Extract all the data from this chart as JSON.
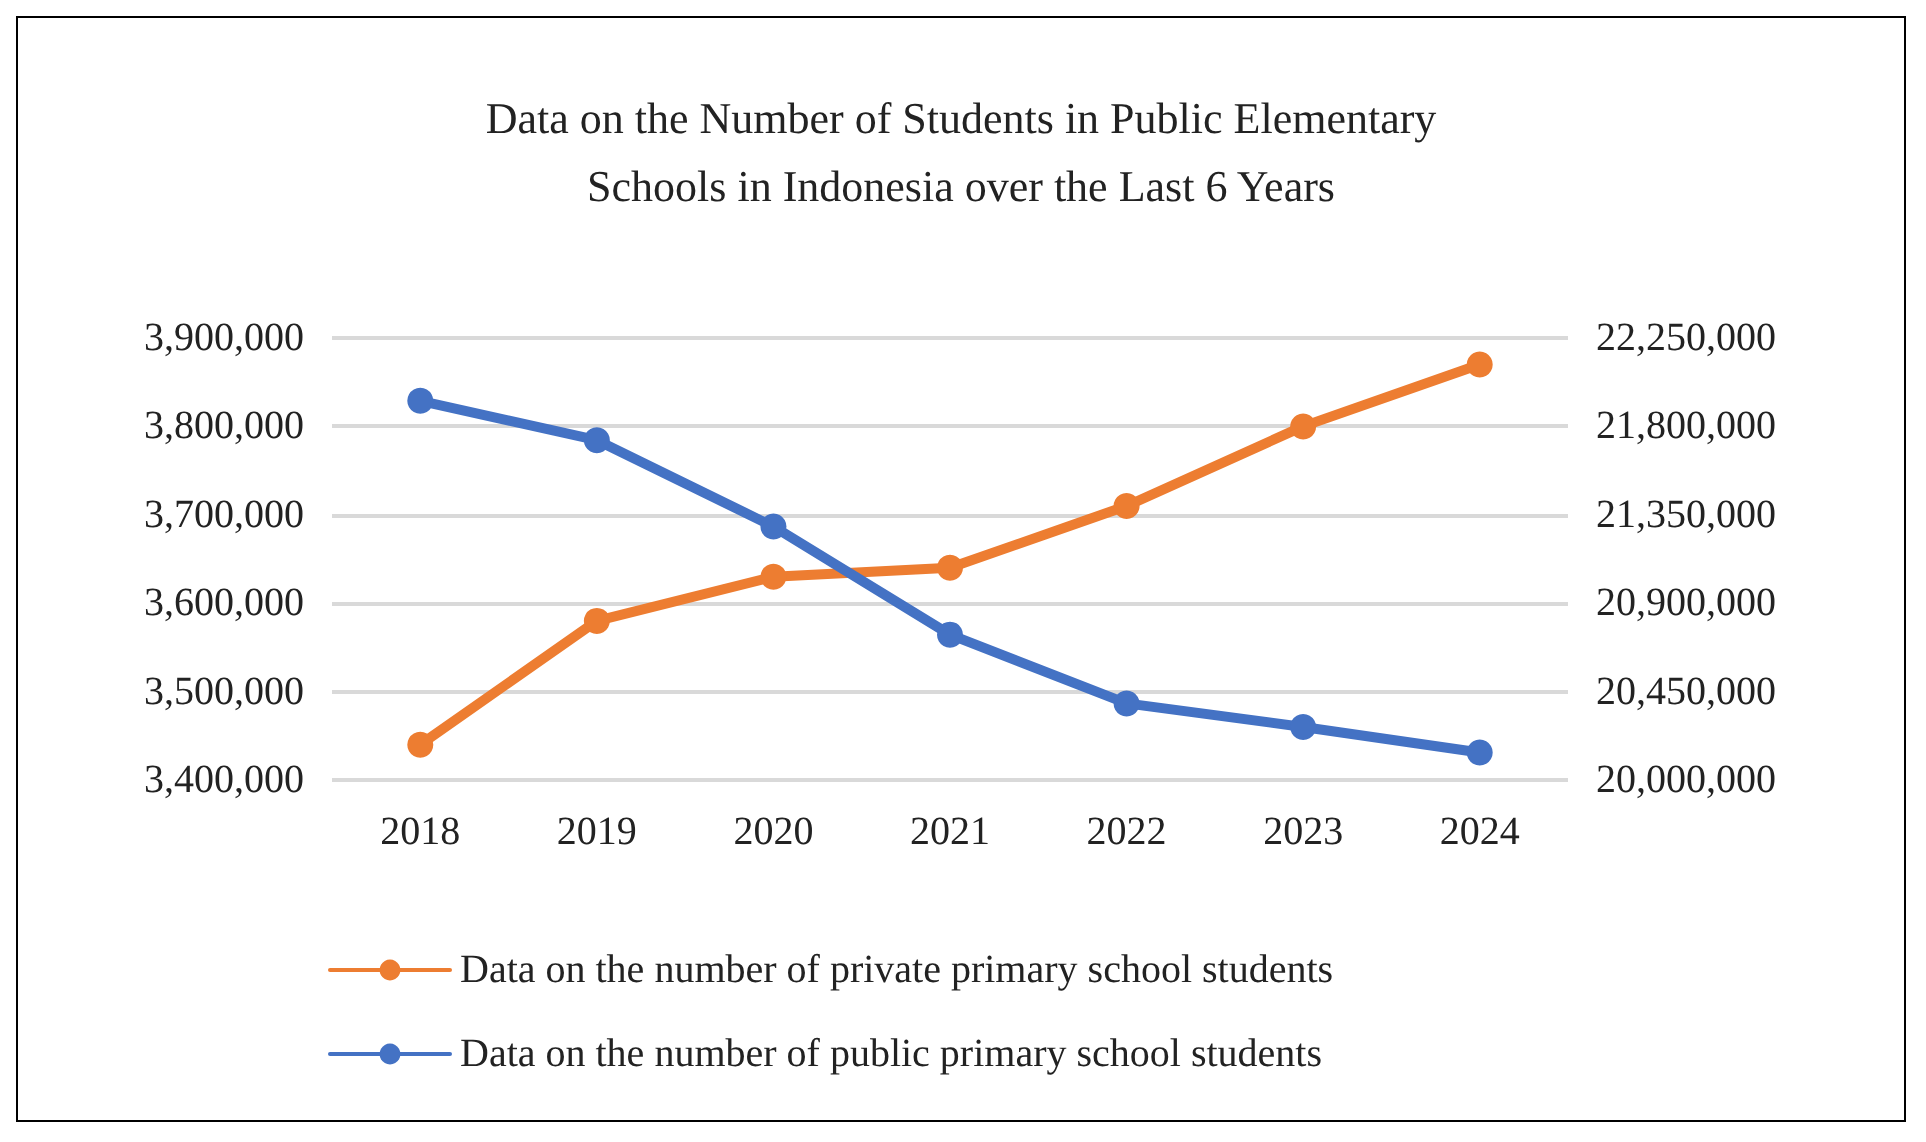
{
  "chart_data": {
    "type": "line",
    "title": "Data on the Number of Students in Public Elementary\nSchools in Indonesia over the Last 6 Years",
    "categories": [
      "2018",
      "2019",
      "2020",
      "2021",
      "2022",
      "2023",
      "2024"
    ],
    "series": [
      {
        "name": "Data on the number of private primary school students",
        "color": "#ed7d31",
        "values": [
          3440000,
          3580000,
          3630000,
          3640000,
          3710000,
          3800000,
          3870000
        ]
      },
      {
        "name": "Data on the number of public primary school students",
        "color": "#4472c4",
        "axis": "y2",
        "values": [
          21930000,
          21730000,
          21290000,
          20740000,
          20390000,
          20270000,
          20140000
        ]
      }
    ],
    "ylim": [
      3400000,
      3900000
    ],
    "yticks": [
      {
        "value": 3400000,
        "label": "3,400,000"
      },
      {
        "value": 3500000,
        "label": "3,500,000"
      },
      {
        "value": 3600000,
        "label": "3,600,000"
      },
      {
        "value": 3700000,
        "label": "3,700,000"
      },
      {
        "value": 3800000,
        "label": "3,800,000"
      },
      {
        "value": 3900000,
        "label": "3,900,000"
      }
    ],
    "y2lim": [
      20000000,
      22250000
    ],
    "y2ticks": [
      {
        "value": 20000000,
        "label": "20,000,000"
      },
      {
        "value": 20450000,
        "label": "20,450,000"
      },
      {
        "value": 20900000,
        "label": "20,900,000"
      },
      {
        "value": 21350000,
        "label": "21,350,000"
      },
      {
        "value": 21800000,
        "label": "21,800,000"
      },
      {
        "value": 22250000,
        "label": "22,250,000"
      }
    ],
    "grid": "y",
    "legend": "bottom",
    "marker": "circle",
    "line_style": "solid"
  }
}
